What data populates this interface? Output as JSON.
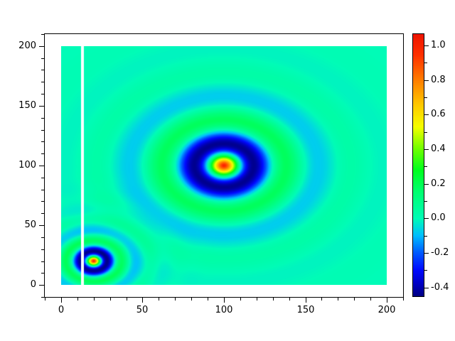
{
  "chart_data": {
    "type": "heatmap",
    "title": "",
    "xlabel": "",
    "ylabel": "",
    "grid": false,
    "x_axis": {
      "lim": [
        -10,
        210
      ],
      "major_ticks": [
        0,
        50,
        100,
        150,
        200
      ],
      "major_labels": [
        "0",
        "50",
        "100",
        "150",
        "200"
      ],
      "minor_step": 10
    },
    "y_axis": {
      "lim": [
        -10,
        210
      ],
      "major_ticks": [
        0,
        50,
        100,
        150,
        200
      ],
      "major_labels": [
        "0",
        "50",
        "100",
        "150",
        "200"
      ],
      "minor_step": 10
    },
    "heatmap": {
      "x_range": [
        0,
        200
      ],
      "y_range": [
        0,
        200
      ],
      "background_value": 0.0,
      "pattern": "sum of two damped cosine ripples: z = A*cos(pi*r/R)*exp(-r/s)",
      "sources": [
        {
          "center_x": 100,
          "center_y": 100,
          "amplitude": 1.0,
          "first_min_radius": 20,
          "decay_length": 23,
          "peak_value": 1.0,
          "ring_min_value": -0.42
        },
        {
          "center_x": 20,
          "center_y": 20,
          "amplitude": 1.0,
          "first_min_radius": 9,
          "decay_length": 10.5,
          "peak_value": 1.0,
          "ring_min_value": -0.42
        }
      ],
      "masked_stripe": {
        "x_min": 12.4,
        "x_max": 13.9,
        "color": "#ffffff"
      }
    },
    "colorbar": {
      "position": "right",
      "vmin": -0.45,
      "vmax": 1.065,
      "major_ticks": [
        1.0,
        0.8,
        0.6,
        0.4,
        0.2,
        0.0,
        -0.2,
        -0.4
      ],
      "major_labels": [
        "1.0",
        "0.8",
        "0.6",
        "0.4",
        "0.2",
        "0.0",
        "-0.2",
        "-0.4"
      ],
      "minor_ticks": [
        0.9,
        0.7,
        0.5,
        0.3,
        0.1,
        -0.1,
        -0.3
      ]
    },
    "colormap": {
      "name": "rainbow-jet-like",
      "anchors": [
        {
          "t": 0.0,
          "color": "#000084"
        },
        {
          "t": 0.05,
          "color": "#0000c8"
        },
        {
          "t": 0.1,
          "color": "#000aff"
        },
        {
          "t": 0.165,
          "color": "#005aff"
        },
        {
          "t": 0.23,
          "color": "#00beff"
        },
        {
          "t": 0.296,
          "color": "#00fcb6"
        },
        {
          "t": 0.4,
          "color": "#00ff6e"
        },
        {
          "t": 0.48,
          "color": "#00ff1e"
        },
        {
          "t": 0.56,
          "color": "#6eff00"
        },
        {
          "t": 0.645,
          "color": "#f5ff00"
        },
        {
          "t": 0.73,
          "color": "#ffc800"
        },
        {
          "t": 0.82,
          "color": "#ff8000"
        },
        {
          "t": 0.92,
          "color": "#ff3000"
        },
        {
          "t": 1.0,
          "color": "#ed1400"
        }
      ]
    },
    "colors": {
      "figure_background": "#ffffff",
      "spine": "#000000",
      "tick": "#000000",
      "tick_label": "#000000"
    }
  }
}
